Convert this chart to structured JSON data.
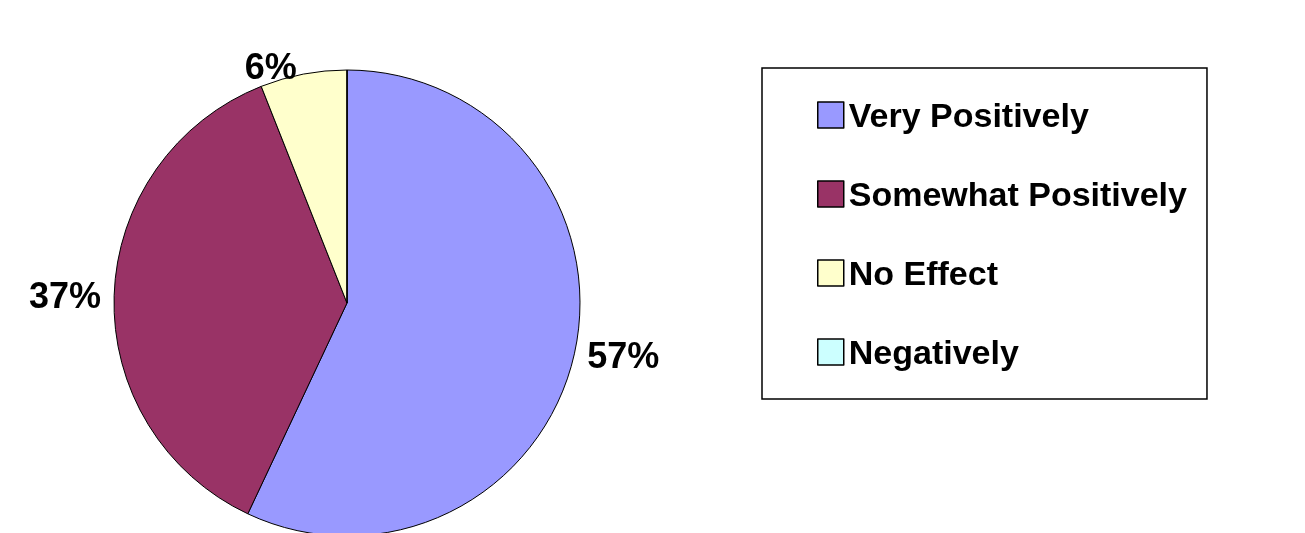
{
  "chart_data": {
    "type": "pie",
    "categories": [
      "Very Positively",
      "Somewhat Positively",
      "No Effect",
      "Negatively"
    ],
    "values": [
      57,
      37,
      6,
      0
    ],
    "colors": [
      "#9999ff",
      "#993366",
      "#ffffcc",
      "#ccffff"
    ],
    "value_labels": [
      "57%",
      "37%",
      "6%",
      null
    ],
    "legend": "right"
  }
}
